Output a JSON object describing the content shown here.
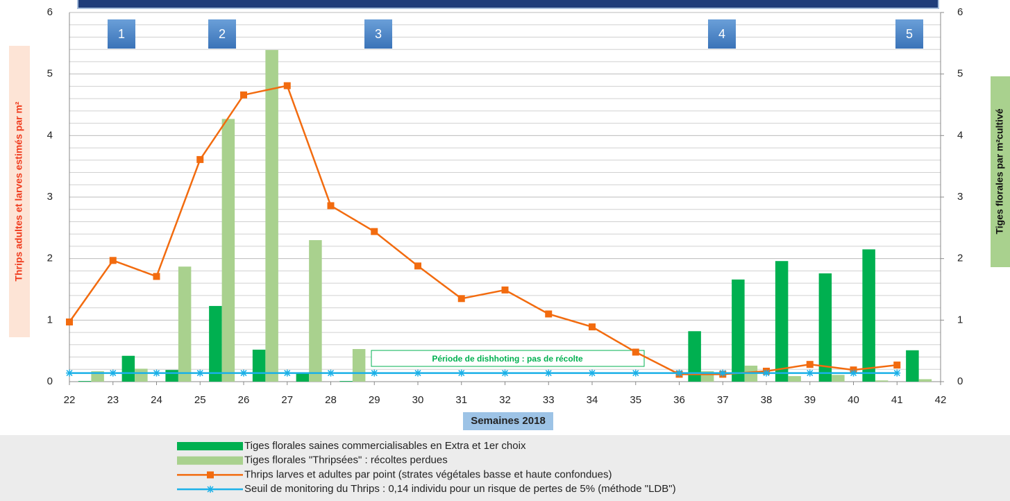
{
  "chart_data": {
    "type": "combo",
    "x_label": "Semaines 2018",
    "y_label": "Thrips adultes et larves estimés par m²",
    "y2_label": "Tiges florales par m²cultivé",
    "x": [
      22,
      23,
      24,
      25,
      26,
      27,
      28,
      29,
      30,
      31,
      32,
      33,
      34,
      35,
      36,
      37,
      38,
      39,
      40,
      41
    ],
    "xlim": [
      22,
      42
    ],
    "xticks": [
      22,
      23,
      24,
      25,
      26,
      27,
      28,
      29,
      30,
      31,
      32,
      33,
      34,
      35,
      36,
      37,
      38,
      39,
      40,
      41,
      42
    ],
    "ylim": [
      0,
      6
    ],
    "yticks": [
      0,
      1,
      2,
      3,
      4,
      5,
      6
    ],
    "yminorticks": [
      0.2,
      0.4,
      0.6,
      0.8,
      1.2,
      1.4,
      1.6,
      1.8,
      2.2,
      2.4,
      2.6,
      2.8,
      3.2,
      3.4,
      3.6,
      3.8,
      4.2,
      4.4,
      4.6,
      4.8,
      5.2,
      5.4,
      5.6,
      5.8
    ],
    "y2lim": [
      0,
      6
    ],
    "y2ticks": [
      0,
      1,
      2,
      3,
      4,
      5,
      6
    ],
    "grid": true,
    "series": [
      {
        "name": "Tiges florales saines commercialisables en Extra et 1er choix",
        "type": "bar",
        "axis": "y2",
        "color": "#00b050",
        "values": [
          0.01,
          0.42,
          0.19,
          1.23,
          0.52,
          0.15,
          0.01,
          null,
          null,
          null,
          null,
          null,
          null,
          null,
          0.82,
          1.66,
          1.96,
          1.76,
          2.15,
          0.51
        ]
      },
      {
        "name": "Tiges florales \"Thripsées\" : récoltes perdues",
        "type": "bar",
        "axis": "y2",
        "color": "#a9d18e",
        "values": [
          0.17,
          0.21,
          1.87,
          4.27,
          5.39,
          2.3,
          0.53,
          null,
          null,
          null,
          null,
          null,
          null,
          null,
          0.17,
          0.26,
          0.09,
          0.11,
          0.02,
          0.04
        ]
      },
      {
        "name": "Thrips larves et adultes par point (strates végétales basse et haute confondues)",
        "type": "line",
        "marker": "square",
        "color": "#f26b0f",
        "values": [
          0.97,
          1.97,
          1.71,
          3.61,
          4.66,
          4.81,
          2.86,
          2.44,
          1.88,
          1.35,
          1.49,
          1.1,
          0.89,
          0.48,
          0.12,
          0.12,
          0.17,
          0.28,
          0.19,
          0.27
        ]
      },
      {
        "name": "Seuil de monitoring du Thrips : 0,14 individu pour un risque de pertes de 5% (méthode \"LDB\")",
        "type": "line",
        "marker": "star",
        "color": "#1ab0e8",
        "values": [
          0.14,
          0.14,
          0.14,
          0.14,
          0.14,
          0.14,
          0.14,
          0.14,
          0.14,
          0.14,
          0.14,
          0.14,
          0.14,
          0.14,
          0.14,
          0.14,
          0.14,
          0.14,
          0.14,
          0.14
        ]
      }
    ],
    "annotations": [
      "1",
      "2",
      "3",
      "4",
      "5",
      "Période de dishhoting : pas de récolte"
    ]
  }
}
